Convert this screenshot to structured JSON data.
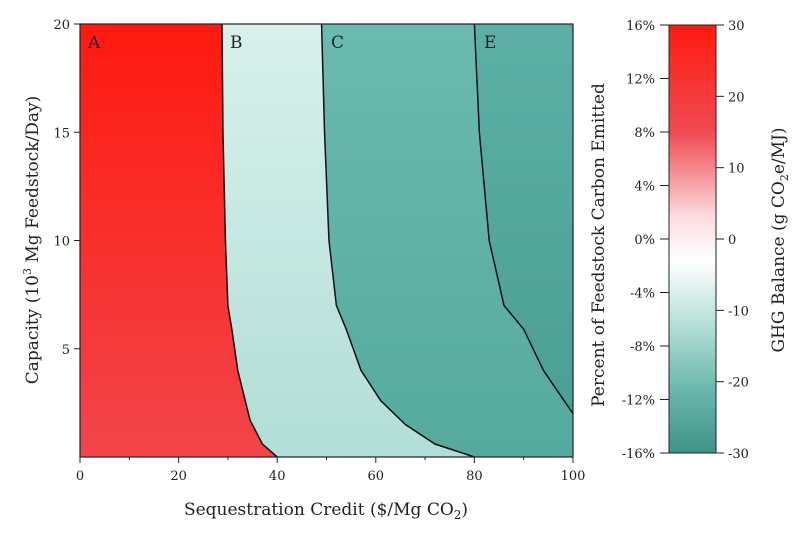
{
  "chart_data": {
    "type": "heatmap",
    "xlabel": "Sequestration Credit ($/Mg CO2)",
    "ylabel": "Capacity (10^3 Mg Feedstock/Day)",
    "xlim": [
      0,
      100
    ],
    "ylim": [
      0,
      20
    ],
    "xticks": [
      "0",
      "20",
      "40",
      "60",
      "80",
      "100"
    ],
    "yticks": [
      "5",
      "10",
      "15",
      "20"
    ],
    "grid": false,
    "regions": [
      {
        "label": "A",
        "color_top": "#ff1a10",
        "color_bottom": "#f2454a"
      },
      {
        "label": "B",
        "color_top": "#d9f1ed",
        "color_bottom": "#b1ded6"
      },
      {
        "label": "C",
        "color_top": "#6bbab0",
        "color_bottom": "#55a99d"
      },
      {
        "label": "E",
        "color_top": "#5cafa4",
        "color_bottom": "#4c9f93"
      }
    ],
    "boundaries": [
      [
        [
          28.8,
          20
        ],
        [
          29,
          15
        ],
        [
          29.5,
          10
        ],
        [
          30,
          7
        ],
        [
          30.8,
          5.9
        ],
        [
          32,
          4
        ],
        [
          34.5,
          1.7
        ],
        [
          37,
          0.6
        ],
        [
          40,
          0
        ]
      ],
      [
        [
          49,
          20
        ],
        [
          49.6,
          15
        ],
        [
          50.5,
          10
        ],
        [
          52,
          7
        ],
        [
          54,
          5.9
        ],
        [
          57,
          4
        ],
        [
          61,
          2.6
        ],
        [
          66,
          1.5
        ],
        [
          72,
          0.6
        ],
        [
          80,
          0
        ]
      ],
      [
        [
          80,
          20
        ],
        [
          81,
          15
        ],
        [
          83,
          10
        ],
        [
          86,
          7
        ],
        [
          90,
          5.9
        ],
        [
          94,
          4
        ],
        [
          100,
          2.0
        ]
      ]
    ],
    "colorbar": {
      "left_label": "Percent of Feedstock Carbon Emitted",
      "right_label": "GHG Balance (g CO2e/MJ)",
      "left_ticks": [
        "16%",
        "12%",
        "8%",
        "4%",
        "0%",
        "-4%",
        "-8%",
        "-12%",
        "-16%"
      ],
      "right_ticks": [
        "30",
        "20",
        "10",
        "0",
        "-10",
        "-20",
        "-30"
      ],
      "range": [
        -30,
        30
      ],
      "colors": [
        "#ff1a10",
        "#ffffff",
        "#3d9285"
      ]
    }
  }
}
